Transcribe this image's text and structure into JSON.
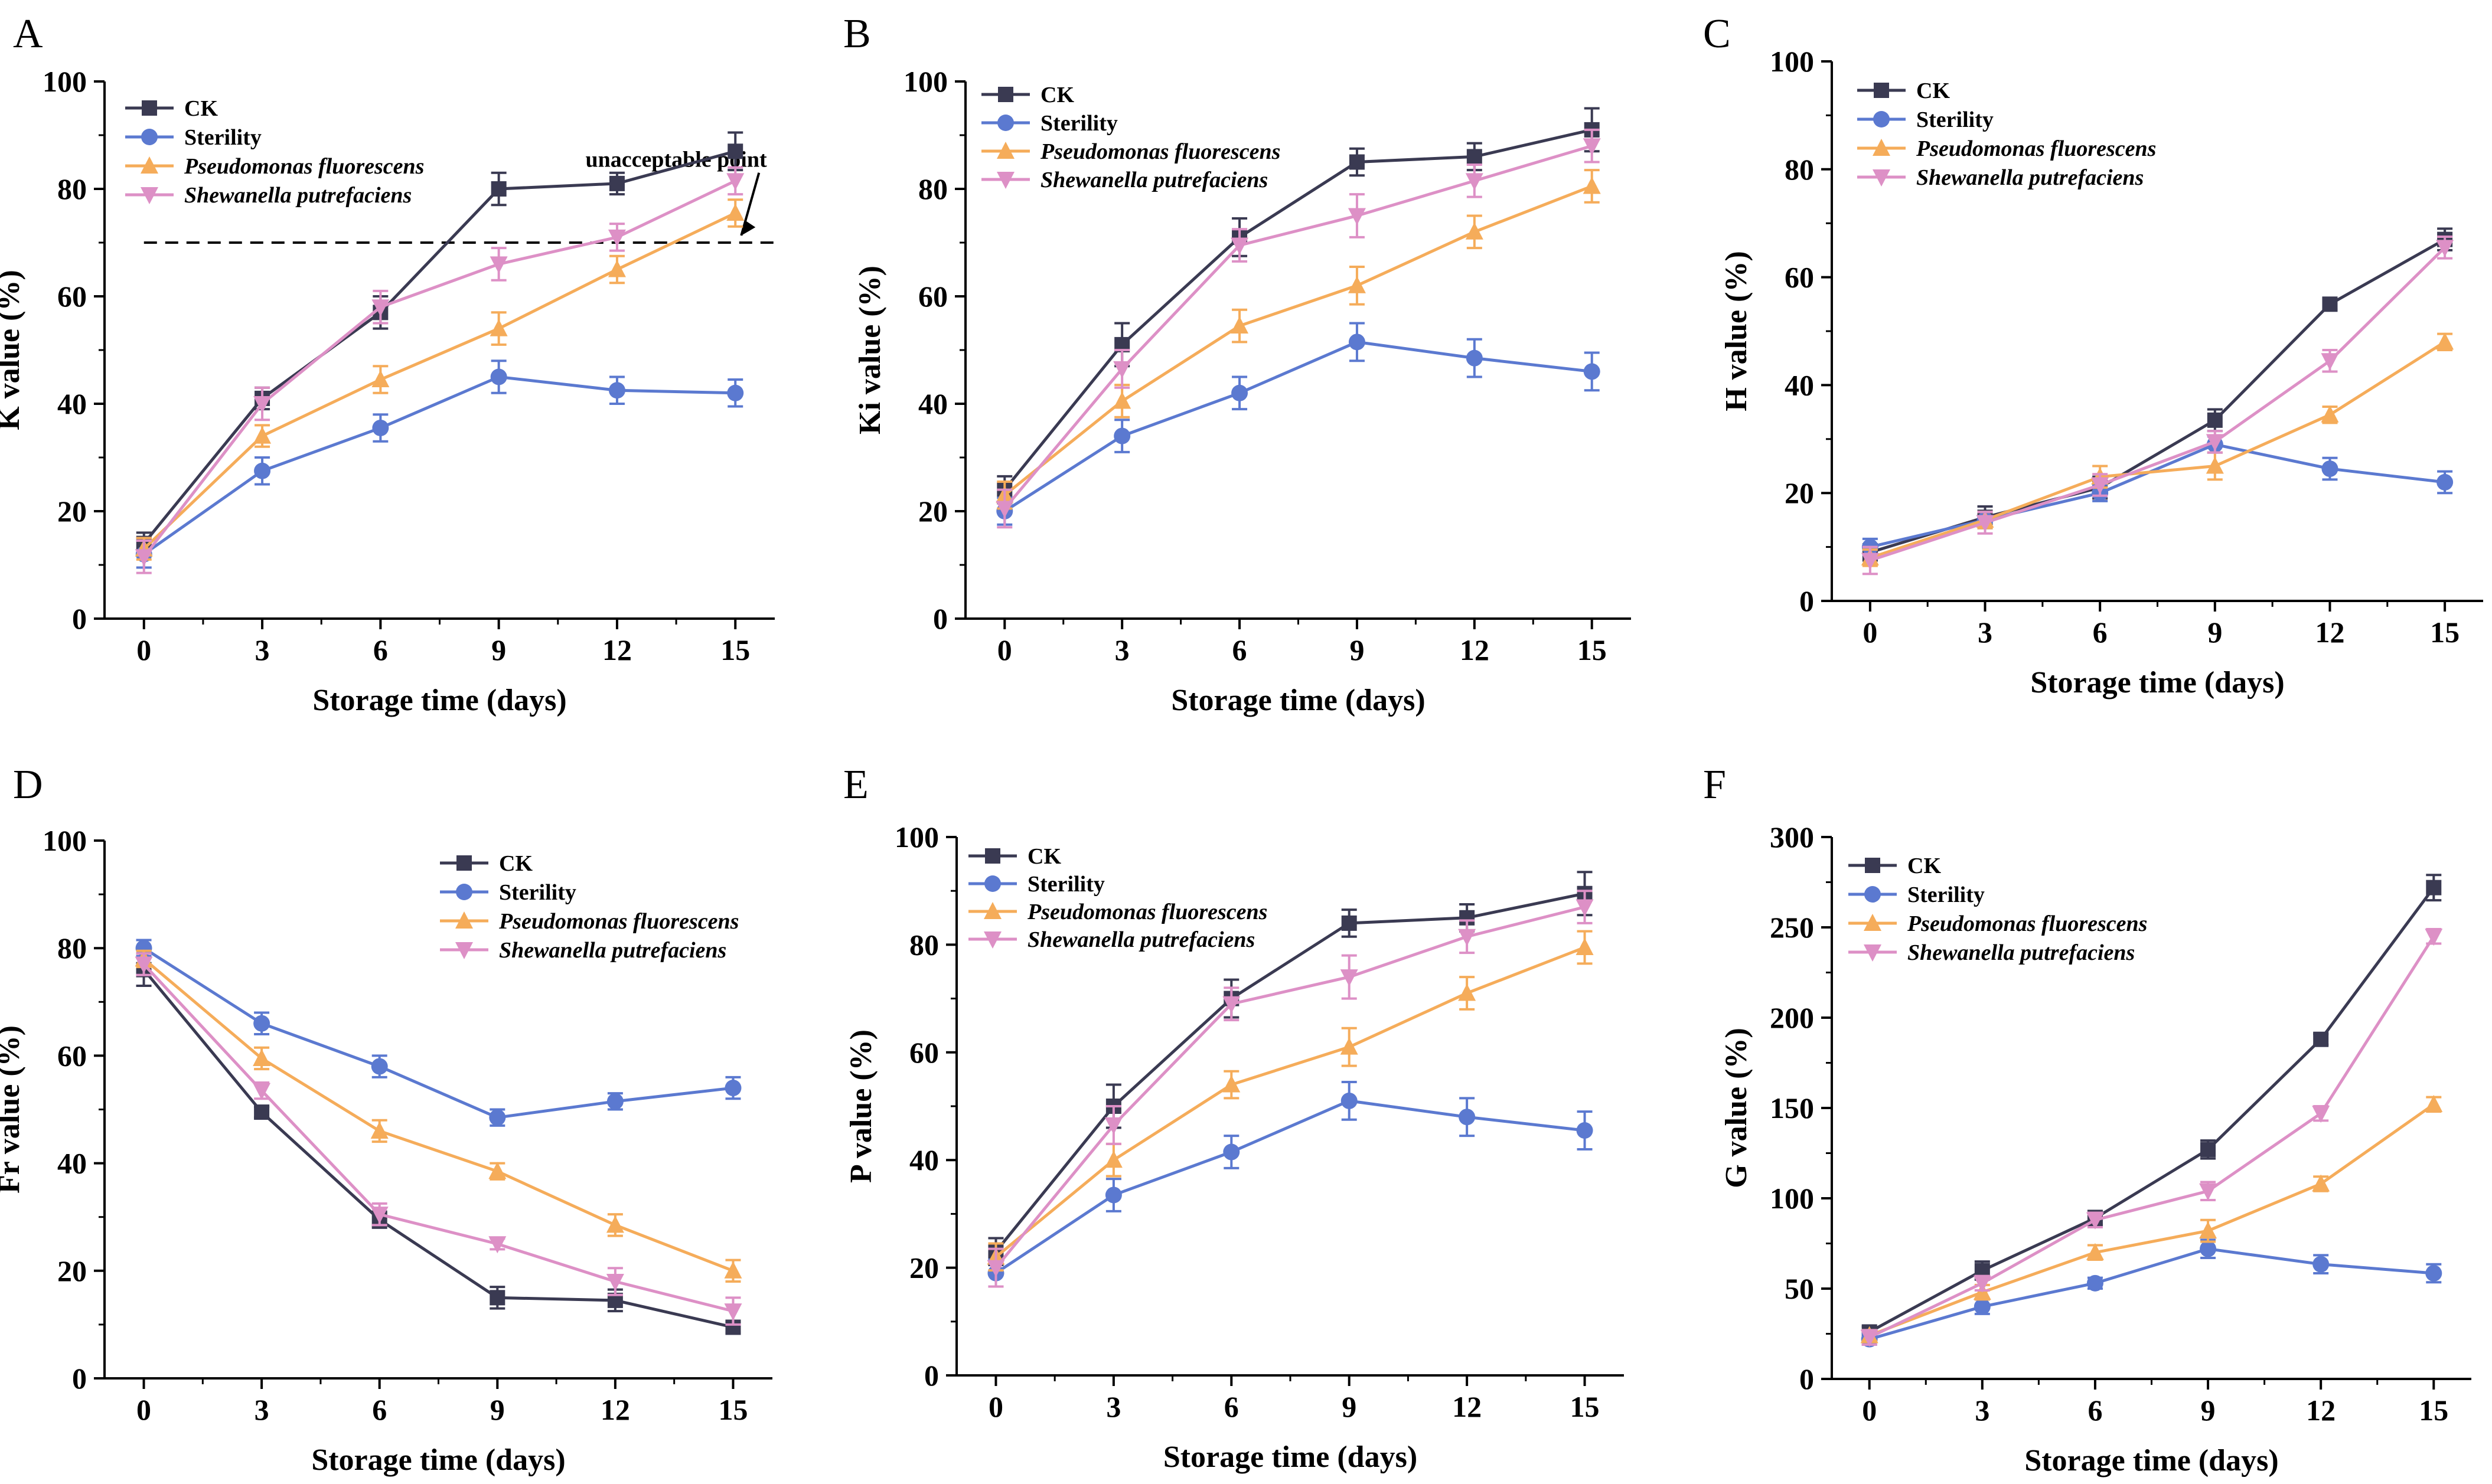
{
  "figure": {
    "panels": [
      "A",
      "B",
      "C",
      "D",
      "E",
      "F"
    ]
  },
  "series_style": [
    {
      "name": "CK",
      "color": "#3a3a52",
      "marker": "square",
      "italic": false
    },
    {
      "name": "Sterility",
      "color": "#5b79d0",
      "marker": "circle",
      "italic": false
    },
    {
      "name": "Pseudomonas fluorescens",
      "color": "#f5ac5a",
      "marker": "triangle-up",
      "italic": true
    },
    {
      "name": "Shewanella putrefaciens",
      "color": "#dd90c6",
      "marker": "triangle-down",
      "italic": true
    }
  ],
  "chart_data": [
    {
      "panel": "A",
      "type": "line",
      "xlabel": "Storage time (days)",
      "ylabel": "K value (%)",
      "x": [
        0,
        3,
        6,
        9,
        12,
        15
      ],
      "xlim": [
        -1,
        16
      ],
      "ylim": [
        0,
        100
      ],
      "yticks": [
        0,
        20,
        40,
        60,
        80,
        100
      ],
      "legend": "top-left",
      "series": [
        {
          "name": "CK",
          "values": [
            14,
            41,
            57,
            80,
            81,
            87
          ],
          "errors": [
            2,
            2,
            3,
            3,
            2,
            3.5
          ]
        },
        {
          "name": "Sterility",
          "values": [
            12,
            27.5,
            35.5,
            45,
            42.5,
            42
          ],
          "errors": [
            2.5,
            2.5,
            2.5,
            3,
            2.5,
            2.5
          ]
        },
        {
          "name": "Pseudomonas fluorescens",
          "values": [
            13,
            34,
            44.5,
            54,
            65,
            75.5
          ],
          "errors": [
            2,
            2,
            2.5,
            3,
            2.5,
            2.5
          ]
        },
        {
          "name": "Shewanella putrefaciens",
          "values": [
            11.5,
            40,
            58,
            66,
            71,
            81.5
          ],
          "errors": [
            3,
            3,
            3,
            3,
            2.5,
            2.5
          ]
        }
      ],
      "reference_line": {
        "y": 70,
        "x_range": [
          0,
          16
        ],
        "label": "unacceptable point"
      }
    },
    {
      "panel": "B",
      "type": "line",
      "xlabel": "Storage time (days)",
      "ylabel": "Ki value (%)",
      "x": [
        0,
        3,
        6,
        9,
        12,
        15
      ],
      "xlim": [
        -1,
        16
      ],
      "ylim": [
        0,
        100
      ],
      "yticks": [
        0,
        20,
        40,
        60,
        80,
        100
      ],
      "legend": "top-left",
      "series": [
        {
          "name": "CK",
          "values": [
            24,
            51,
            71,
            85,
            86,
            91
          ],
          "errors": [
            2.5,
            4,
            3.5,
            2.5,
            2.5,
            4
          ]
        },
        {
          "name": "Sterility",
          "values": [
            20,
            34,
            42,
            51.5,
            48.5,
            46
          ],
          "errors": [
            2.5,
            3,
            3,
            3.5,
            3.5,
            3.5
          ]
        },
        {
          "name": "Pseudomonas fluorescens",
          "values": [
            23,
            40.5,
            54.5,
            62,
            72,
            80.5
          ],
          "errors": [
            2.5,
            3,
            3,
            3.5,
            3,
            3
          ]
        },
        {
          "name": "Shewanella putrefaciens",
          "values": [
            20.5,
            46.5,
            69.5,
            75,
            81.5,
            88
          ],
          "errors": [
            3.5,
            3.5,
            3,
            4,
            3,
            3
          ]
        }
      ]
    },
    {
      "panel": "C",
      "type": "line",
      "xlabel": "Storage time (days)",
      "ylabel": "H value (%)",
      "x": [
        0,
        3,
        6,
        9,
        12,
        15
      ],
      "xlim": [
        -1,
        16
      ],
      "ylim": [
        0,
        100
      ],
      "yticks": [
        0,
        20,
        40,
        60,
        80,
        100
      ],
      "legend": "top-left",
      "series": [
        {
          "name": "CK",
          "values": [
            9,
            15.5,
            21,
            33.5,
            55,
            67
          ],
          "errors": [
            1.5,
            2,
            2,
            2,
            1,
            2
          ]
        },
        {
          "name": "Sterility",
          "values": [
            10,
            15,
            20,
            29,
            24.5,
            22
          ],
          "errors": [
            1.5,
            1.5,
            1.5,
            1.5,
            2,
            2
          ]
        },
        {
          "name": "Pseudomonas fluorescens",
          "values": [
            8,
            15,
            23,
            25,
            34.5,
            48
          ],
          "errors": [
            1.5,
            1.5,
            2,
            2.5,
            1.5,
            1.5
          ]
        },
        {
          "name": "Shewanella putrefaciens",
          "values": [
            7.5,
            14.5,
            21.5,
            29.5,
            44.5,
            65.5
          ],
          "errors": [
            2.5,
            2,
            2,
            2,
            2,
            2
          ]
        }
      ]
    },
    {
      "panel": "D",
      "type": "line",
      "xlabel": "Storage time (days)",
      "ylabel": "Fr value (%)",
      "x": [
        0,
        3,
        6,
        9,
        12,
        15
      ],
      "xlim": [
        -1,
        16
      ],
      "ylim": [
        0,
        100
      ],
      "yticks": [
        0,
        20,
        40,
        60,
        80,
        100
      ],
      "legend": "top-right",
      "series": [
        {
          "name": "CK",
          "values": [
            76,
            49.5,
            29.5,
            15,
            14.5,
            9.5
          ],
          "errors": [
            3,
            1,
            1.5,
            2,
            2,
            1
          ]
        },
        {
          "name": "Sterility",
          "values": [
            80,
            66,
            58,
            48.5,
            51.5,
            54
          ],
          "errors": [
            1.5,
            2,
            2,
            1.5,
            1.5,
            2
          ]
        },
        {
          "name": "Pseudomonas fluorescens",
          "values": [
            78,
            59.5,
            46,
            38.5,
            28.5,
            20
          ],
          "errors": [
            1.5,
            2,
            2,
            1.5,
            2,
            2
          ]
        },
        {
          "name": "Shewanella putrefaciens",
          "values": [
            77,
            53.5,
            30.5,
            25,
            18,
            12.5
          ],
          "errors": [
            2,
            1.5,
            2,
            1,
            2.5,
            2.5
          ]
        }
      ]
    },
    {
      "panel": "E",
      "type": "line",
      "xlabel": "Storage time (days)",
      "ylabel": "P value (%)",
      "x": [
        0,
        3,
        6,
        9,
        12,
        15
      ],
      "xlim": [
        -1,
        16
      ],
      "ylim": [
        0,
        100
      ],
      "yticks": [
        0,
        20,
        40,
        60,
        80,
        100
      ],
      "legend": "top-left",
      "series": [
        {
          "name": "CK",
          "values": [
            23,
            50,
            70,
            84,
            85,
            89.5
          ],
          "errors": [
            2.5,
            4,
            3.5,
            2.5,
            2.5,
            4
          ]
        },
        {
          "name": "Sterility",
          "values": [
            19,
            33.5,
            41.5,
            51,
            48,
            45.5
          ],
          "errors": [
            2.5,
            3,
            3,
            3.5,
            3.5,
            3.5
          ]
        },
        {
          "name": "Pseudomonas fluorescens",
          "values": [
            22,
            40,
            54,
            61,
            71,
            79.5
          ],
          "errors": [
            2.5,
            3,
            2.5,
            3.5,
            3,
            3
          ]
        },
        {
          "name": "Shewanella putrefaciens",
          "values": [
            20,
            46.5,
            69,
            74,
            81.5,
            87
          ],
          "errors": [
            3.5,
            3.5,
            3,
            4,
            3,
            3
          ]
        }
      ]
    },
    {
      "panel": "F",
      "type": "line",
      "xlabel": "Storage time (days)",
      "ylabel": "G value (%)",
      "x": [
        0,
        3,
        6,
        9,
        12,
        15
      ],
      "xlim": [
        -1,
        16
      ],
      "ylim": [
        0,
        300
      ],
      "yticks": [
        0,
        50,
        100,
        150,
        200,
        250,
        300
      ],
      "legend": "top-left",
      "series": [
        {
          "name": "CK",
          "values": [
            26,
            60,
            89,
            127,
            188,
            272
          ],
          "errors": [
            3,
            5,
            4,
            5,
            3,
            7
          ]
        },
        {
          "name": "Sterility",
          "values": [
            22,
            40,
            53,
            72,
            63.5,
            58.5
          ],
          "errors": [
            3,
            4,
            3,
            5,
            5,
            5
          ]
        },
        {
          "name": "Pseudomonas fluorescens",
          "values": [
            24,
            48,
            70,
            82,
            108,
            152
          ],
          "errors": [
            3,
            4,
            4,
            6,
            4,
            4
          ]
        },
        {
          "name": "Shewanella putrefaciens",
          "values": [
            23,
            53,
            88,
            104,
            147,
            245
          ],
          "errors": [
            4,
            4,
            4,
            5,
            4,
            4
          ]
        }
      ]
    }
  ]
}
